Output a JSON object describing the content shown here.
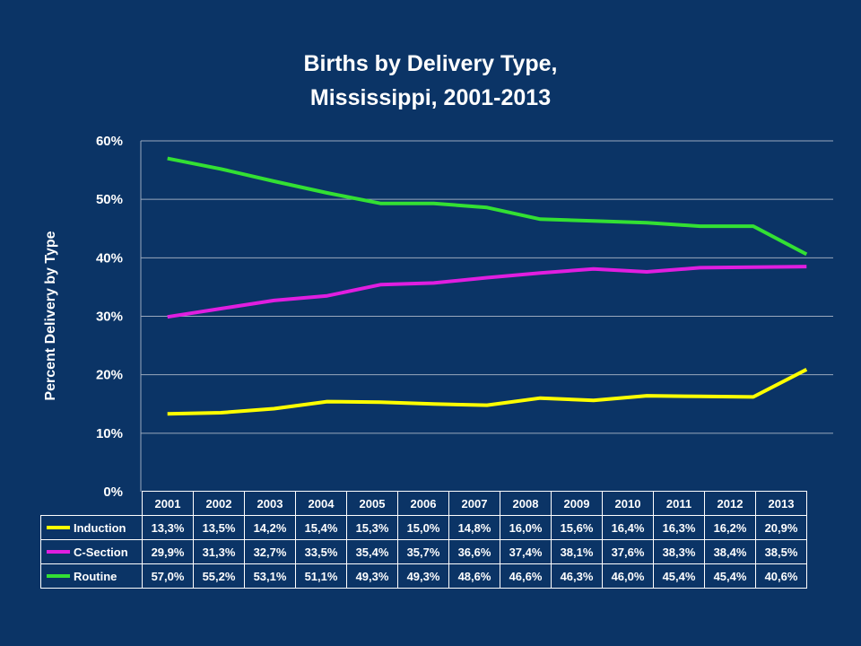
{
  "chart_data": {
    "type": "line",
    "title": [
      "Births by Delivery Type,",
      "Mississippi, 2001-2013"
    ],
    "ylabel": "Percent Delivery by Type",
    "ylim": [
      0,
      60
    ],
    "yticks": [
      "0%",
      "10%",
      "20%",
      "30%",
      "40%",
      "50%",
      "60%"
    ],
    "gridlines": true,
    "categories": [
      "2001",
      "2002",
      "2003",
      "2004",
      "2005",
      "2006",
      "2007",
      "2008",
      "2009",
      "2010",
      "2011",
      "2012",
      "2013"
    ],
    "series": [
      {
        "name": "Induction",
        "color": "#ffff00",
        "values": [
          13.3,
          13.5,
          14.2,
          15.4,
          15.3,
          15.0,
          14.8,
          16.0,
          15.6,
          16.4,
          16.3,
          16.2,
          20.9
        ],
        "labels": [
          "13,3%",
          "13,5%",
          "14,2%",
          "15,4%",
          "15,3%",
          "15,0%",
          "14,8%",
          "16,0%",
          "15,6%",
          "16,4%",
          "16,3%",
          "16,2%",
          "20,9%"
        ]
      },
      {
        "name": "C-Section",
        "color": "#e01ee0",
        "values": [
          29.9,
          31.3,
          32.7,
          33.5,
          35.4,
          35.7,
          36.6,
          37.4,
          38.1,
          37.6,
          38.3,
          38.4,
          38.5
        ],
        "labels": [
          "29,9%",
          "31,3%",
          "32,7%",
          "33,5%",
          "35,4%",
          "35,7%",
          "36,6%",
          "37,4%",
          "38,1%",
          "37,6%",
          "38,3%",
          "38,4%",
          "38,5%"
        ]
      },
      {
        "name": "Routine",
        "color": "#33e033",
        "values": [
          57.0,
          55.2,
          53.1,
          51.1,
          49.3,
          49.3,
          48.6,
          46.6,
          46.3,
          46.0,
          45.4,
          45.4,
          40.6
        ],
        "labels": [
          "57,0%",
          "55,2%",
          "53,1%",
          "51,1%",
          "49,3%",
          "49,3%",
          "48,6%",
          "46,6%",
          "46,3%",
          "46,0%",
          "45,4%",
          "45,4%",
          "40,6%"
        ]
      }
    ]
  }
}
